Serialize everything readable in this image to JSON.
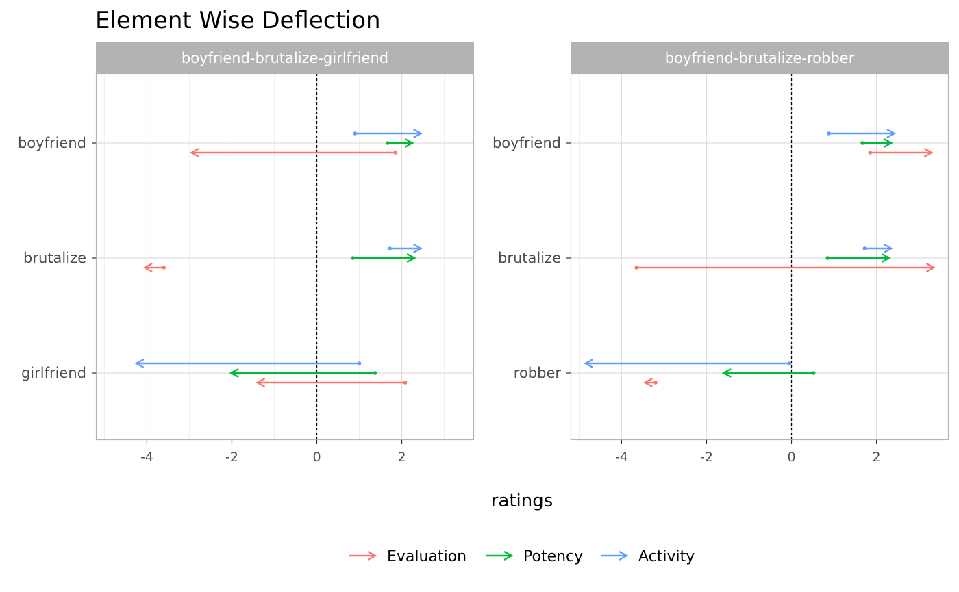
{
  "title": "Element Wise Deflection",
  "colors": {
    "Evaluation": "#F8766D",
    "Potency": "#00BA38",
    "Activity": "#619CFF",
    "strip": "#b3b3b3",
    "panel_border": "#b3b3b3",
    "grid_major": "#dedede",
    "grid_minor": "#efefef"
  },
  "legend": {
    "position": "bottom",
    "items": [
      "Evaluation",
      "Potency",
      "Activity"
    ]
  },
  "chart_data": [
    {
      "type": "arrow",
      "panel": "boyfriend-brutalize-girlfriend",
      "xlabel": "ratings",
      "xlim": [
        -5.2,
        3.7
      ],
      "xticks": [
        -4,
        -2,
        0,
        2
      ],
      "categories": [
        "boyfriend",
        "brutalize",
        "girlfriend"
      ],
      "series": [
        {
          "name": "Evaluation",
          "segments": [
            {
              "element": "boyfriend",
              "from": 1.85,
              "to": -2.95
            },
            {
              "element": "brutalize",
              "from": -3.6,
              "to": -4.05
            },
            {
              "element": "girlfriend",
              "from": 2.08,
              "to": -1.4
            }
          ]
        },
        {
          "name": "Potency",
          "segments": [
            {
              "element": "boyfriend",
              "from": 1.67,
              "to": 2.25
            },
            {
              "element": "brutalize",
              "from": 0.85,
              "to": 2.3
            },
            {
              "element": "girlfriend",
              "from": 1.37,
              "to": -2.02
            }
          ]
        },
        {
          "name": "Activity",
          "segments": [
            {
              "element": "boyfriend",
              "from": 0.9,
              "to": 2.45
            },
            {
              "element": "brutalize",
              "from": 1.72,
              "to": 2.45
            },
            {
              "element": "girlfriend",
              "from": 1.0,
              "to": -4.25
            }
          ]
        }
      ]
    },
    {
      "type": "arrow",
      "panel": "boyfriend-brutalize-robber",
      "xlabel": "ratings",
      "xlim": [
        -5.2,
        3.7
      ],
      "xticks": [
        -4,
        -2,
        0,
        2
      ],
      "categories": [
        "boyfriend",
        "brutalize",
        "robber"
      ],
      "series": [
        {
          "name": "Evaluation",
          "segments": [
            {
              "element": "boyfriend",
              "from": 1.85,
              "to": 3.3
            },
            {
              "element": "brutalize",
              "from": -3.65,
              "to": 3.35
            },
            {
              "element": "robber",
              "from": -3.2,
              "to": -3.45
            }
          ]
        },
        {
          "name": "Potency",
          "segments": [
            {
              "element": "boyfriend",
              "from": 1.67,
              "to": 2.35
            },
            {
              "element": "brutalize",
              "from": 0.85,
              "to": 2.3
            },
            {
              "element": "robber",
              "from": 0.52,
              "to": -1.6
            }
          ]
        },
        {
          "name": "Activity",
          "segments": [
            {
              "element": "boyfriend",
              "from": 0.88,
              "to": 2.42
            },
            {
              "element": "brutalize",
              "from": 1.72,
              "to": 2.35
            },
            {
              "element": "robber",
              "from": -0.05,
              "to": -4.85
            }
          ]
        }
      ]
    }
  ]
}
